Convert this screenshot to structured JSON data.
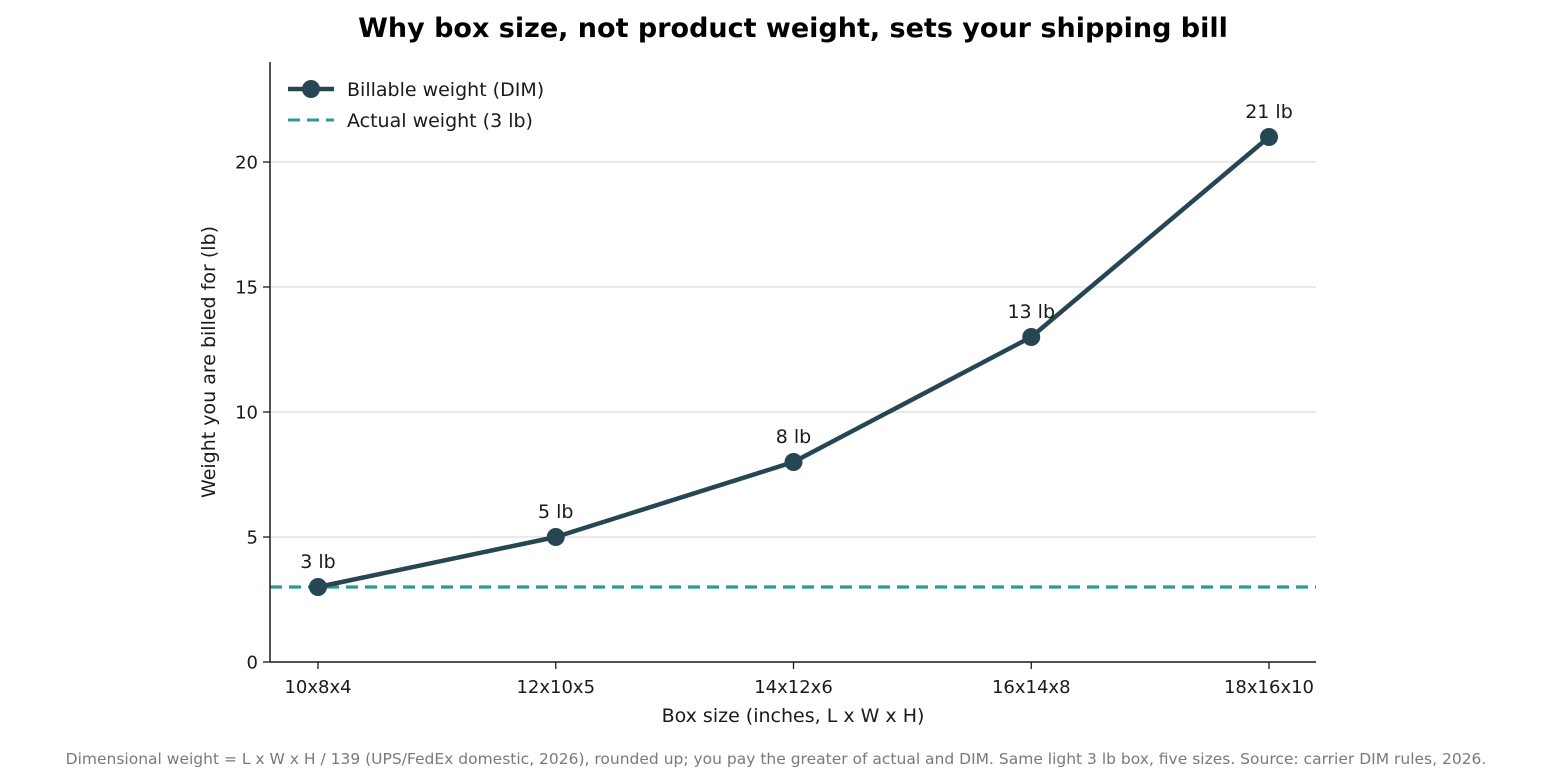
{
  "chart_data": {
    "type": "line",
    "title": "Why box size, not product weight, sets your shipping bill",
    "xlabel": "Box size (inches, L x W x H)",
    "ylabel": "Weight you are billed for (lb)",
    "categories": [
      "10x8x4",
      "12x10x5",
      "14x12x6",
      "16x14x8",
      "18x16x10"
    ],
    "series": [
      {
        "name": "Billable weight (DIM)",
        "values": [
          3,
          5,
          8,
          13,
          21
        ],
        "labels": [
          "3 lb",
          "5 lb",
          "8 lb",
          "13 lb",
          "21 lb"
        ],
        "color": "#264653"
      }
    ],
    "reference_line": {
      "name": "Actual weight (3 lb)",
      "value": 3,
      "style": "dashed",
      "color": "#2a9d8f"
    },
    "ylim": [
      0,
      24
    ],
    "yticks": [
      0,
      5,
      10,
      15,
      20
    ],
    "grid": "horizontal",
    "legend_position": "top-left",
    "caption": "Dimensional weight = L x W x H / 139 (UPS/FedEx domestic, 2026), rounded up; you pay the greater of actual and DIM. Same light 3 lb box, five sizes. Source: carrier DIM rules, 2026."
  }
}
